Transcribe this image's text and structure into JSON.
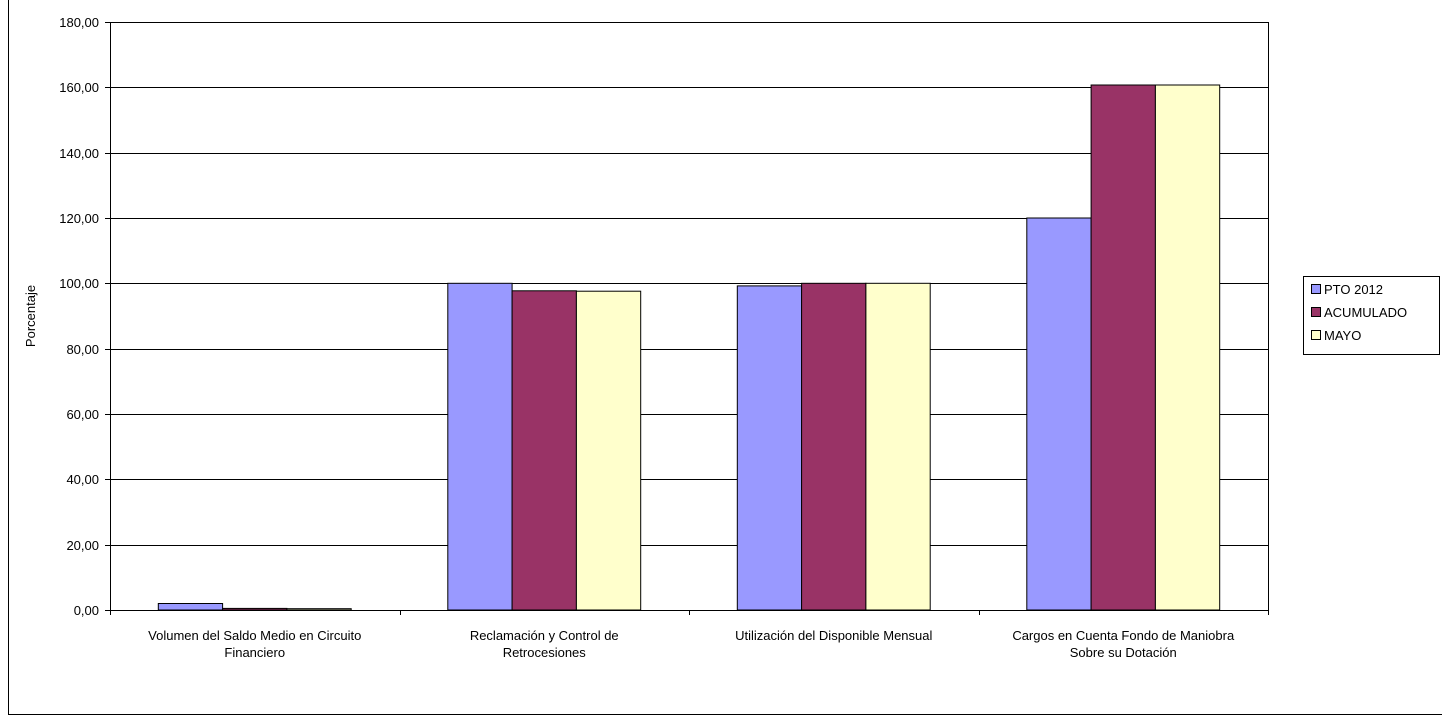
{
  "chart_data": {
    "type": "bar",
    "title": "",
    "xlabel": "",
    "ylabel": "Porcentaje",
    "ylim": [
      0,
      180
    ],
    "ytick_step": 20,
    "ytick_labels": [
      "0,00",
      "20,00",
      "40,00",
      "60,00",
      "80,00",
      "100,00",
      "120,00",
      "140,00",
      "160,00",
      "180,00"
    ],
    "grid": true,
    "legend_position": "right",
    "categories": [
      [
        "Volumen del Saldo Medio en Circuito",
        "Financiero"
      ],
      [
        "Reclamación y Control de",
        "Retrocesiones"
      ],
      [
        "Utilización del Disponible Mensual"
      ],
      [
        "Cargos en Cuenta Fondo de Maniobra",
        "Sobre su Dotación"
      ]
    ],
    "series": [
      {
        "name": "PTO  2012",
        "color": "#9999ff",
        "values": [
          2.0,
          100.0,
          99.2,
          120.0
        ]
      },
      {
        "name": "ACUMULADO",
        "color": "#993366",
        "values": [
          0.5,
          97.7,
          100.0,
          160.7
        ]
      },
      {
        "name": "MAYO",
        "color": "#ffffcc",
        "values": [
          0.4,
          97.6,
          100.0,
          160.7
        ]
      }
    ]
  }
}
